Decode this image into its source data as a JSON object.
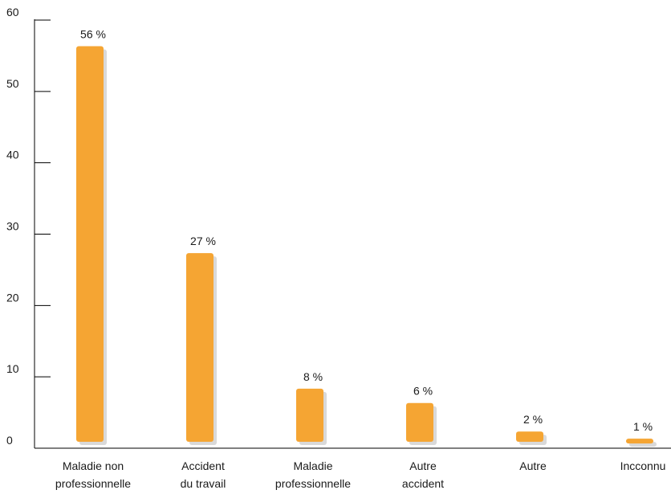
{
  "chart_data": {
    "type": "bar",
    "categories": [
      [
        "Maladie non",
        "professionnelle"
      ],
      [
        "Accident",
        "du travail"
      ],
      [
        "Maladie",
        "professionnelle"
      ],
      [
        "Autre",
        "accident"
      ],
      [
        "Autre"
      ],
      [
        "Incconnu"
      ]
    ],
    "values": [
      56,
      27,
      8,
      6,
      2,
      1
    ],
    "data_labels": [
      "56 %",
      "27 %",
      "8 %",
      "6 %",
      "2 %",
      "1 %"
    ],
    "ylim": [
      0,
      60
    ],
    "yticks": [
      0,
      10,
      20,
      30,
      40,
      50,
      60
    ],
    "grid": false,
    "title": "",
    "xlabel": "",
    "ylabel": ""
  },
  "colors": {
    "bar": "#F5A533",
    "shadow": "#D9D9D9",
    "axis": "#000000"
  }
}
